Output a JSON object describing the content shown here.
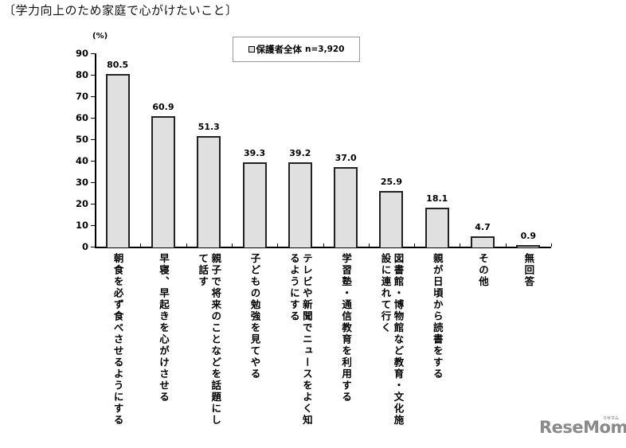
{
  "header": {
    "title": "〔学力向上のため家庭で心がけたいこと〕"
  },
  "legend": {
    "swatch_label": "保護者全体",
    "n_label": "n=3,920"
  },
  "axis": {
    "unit_label": "(%)"
  },
  "logo": {
    "text": "ReseMom",
    "kana": "リセマム"
  },
  "chart_data": {
    "type": "bar",
    "title": "〔学力向上のため家庭で心がけたいこと〕",
    "xlabel": "",
    "ylabel": "(%)",
    "ylim": [
      0,
      90
    ],
    "yticks": [
      0,
      10,
      20,
      30,
      40,
      50,
      60,
      70,
      80,
      90
    ],
    "grid": false,
    "legend_position": "top-center",
    "series": [
      {
        "name": "保護者全体 n=3,920",
        "values": [
          80.5,
          60.9,
          51.3,
          39.3,
          39.2,
          37.0,
          25.9,
          18.1,
          4.7,
          0.9
        ]
      }
    ],
    "categories": [
      "朝食を必ず食べさせるようにする",
      "早寝、早起きを心がけさせる",
      "親子で将来のことなどを話題にして話す",
      "子どもの勉強を見てやる",
      "テレビや新聞でニュースをよく知るようにする",
      "学習塾・通信教育を利用する",
      "図書館・博物館など教育・文化施設に連れて行く",
      "親が日頃から読書をする",
      "その他",
      "無回答"
    ],
    "category_display": [
      "朝食を必ず食べさせるようにする",
      "早寝、早起きを心がけさせる",
      "親子で将来のことなどを話題にし\nて話す",
      "子どもの勉強を見てやる",
      "テレビや新聞でニュースをよく知\nるようにする",
      "学習塾・通信教育を利用する",
      "図書館・博物館など教育・文化施\n設に連れて行く",
      "親が日頃から読書をする",
      "その他",
      "無回答"
    ],
    "value_labels": [
      "80.5",
      "60.9",
      "51.3",
      "39.3",
      "39.2",
      "37.0",
      "25.9",
      "18.1",
      "4.7",
      "0.9"
    ]
  }
}
